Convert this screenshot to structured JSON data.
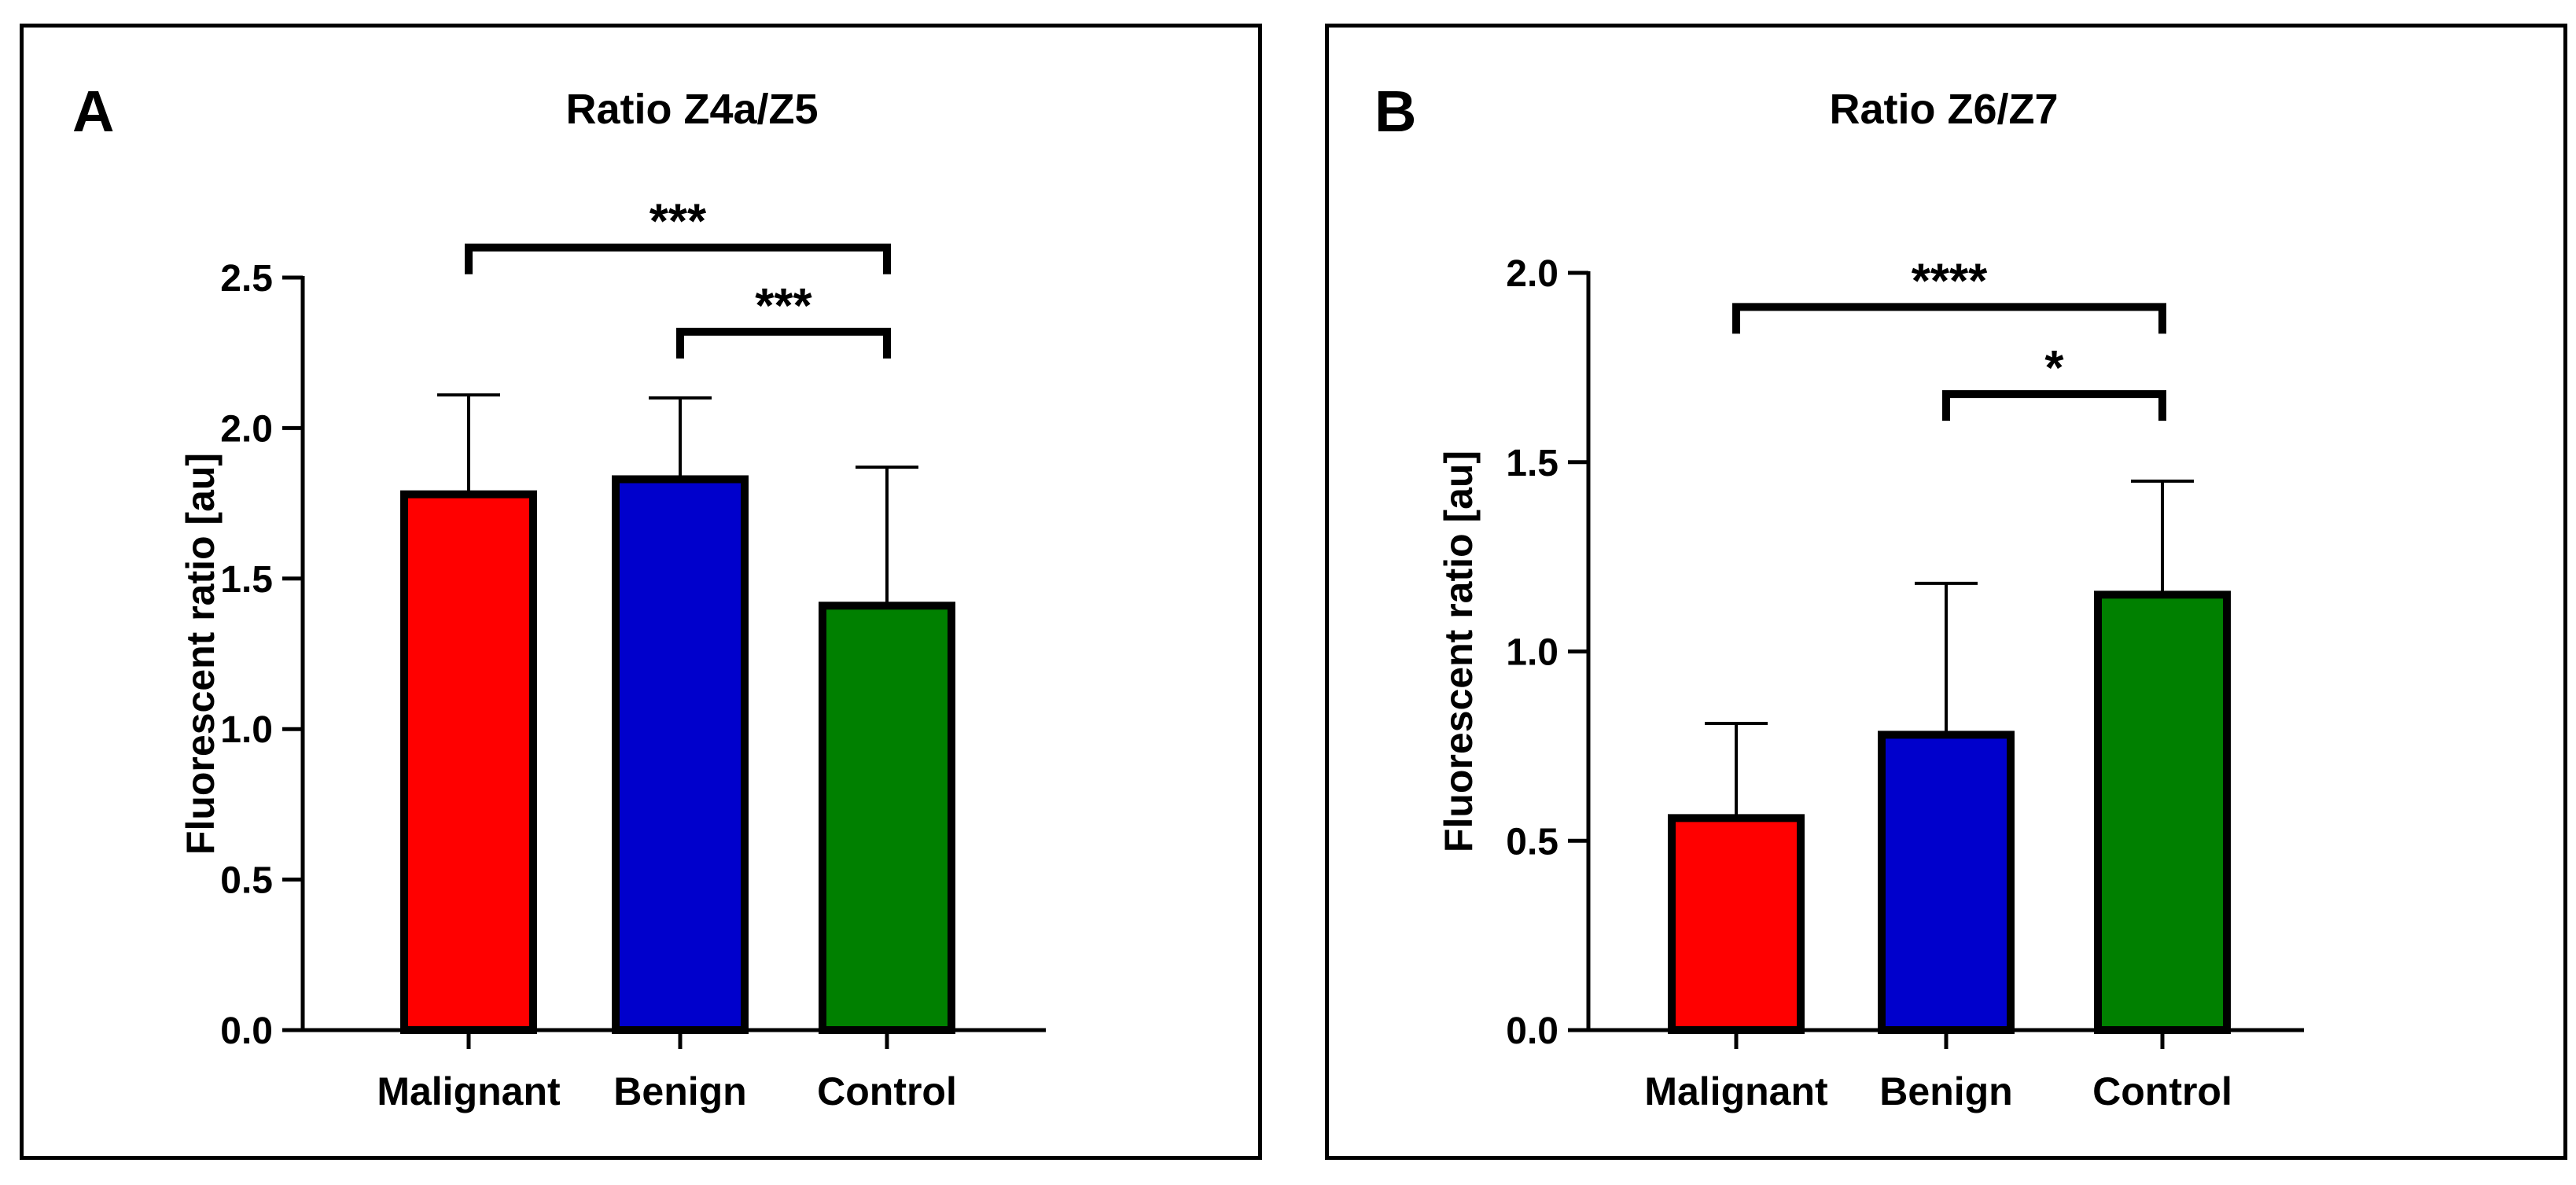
{
  "chart_data": [
    {
      "type": "bar",
      "panel_letter": "A",
      "title": "Ratio Z4a/Z5",
      "ylabel": "Fluorescent ratio [au]",
      "xlabel": "",
      "categories": [
        "Malignant",
        "Benign",
        "Control"
      ],
      "values": [
        1.78,
        1.83,
        1.41
      ],
      "errors": [
        0.33,
        0.27,
        0.46
      ],
      "colors": [
        "#ff0000",
        "#0000cc",
        "#008000"
      ],
      "ylim": [
        0,
        2.5
      ],
      "yticks": [
        0.0,
        0.5,
        1.0,
        1.5,
        2.0,
        2.5
      ],
      "ytick_labels": [
        "0.0",
        "0.5",
        "1.0",
        "1.5",
        "2.0",
        "2.5"
      ],
      "significance": [
        {
          "from": 0,
          "to": 2,
          "label": "***",
          "y": 2.6
        },
        {
          "from": 1,
          "to": 2,
          "label": "***",
          "y": 2.32
        }
      ]
    },
    {
      "type": "bar",
      "panel_letter": "B",
      "title": "Ratio Z6/Z7",
      "ylabel": "Fluorescent ratio [au]",
      "xlabel": "",
      "categories": [
        "Malignant",
        "Benign",
        "Control"
      ],
      "values": [
        0.56,
        0.78,
        1.15
      ],
      "errors": [
        0.25,
        0.4,
        0.3
      ],
      "colors": [
        "#ff0000",
        "#0000cc",
        "#008000"
      ],
      "ylim": [
        0,
        2.0
      ],
      "yticks": [
        0.0,
        0.5,
        1.0,
        1.5,
        2.0
      ],
      "ytick_labels": [
        "0.0",
        "0.5",
        "1.0",
        "1.5",
        "2.0"
      ],
      "significance": [
        {
          "from": 0,
          "to": 2,
          "label": "****",
          "y": 1.91
        },
        {
          "from": 1,
          "to": 2,
          "label": "*",
          "y": 1.68
        }
      ]
    }
  ]
}
